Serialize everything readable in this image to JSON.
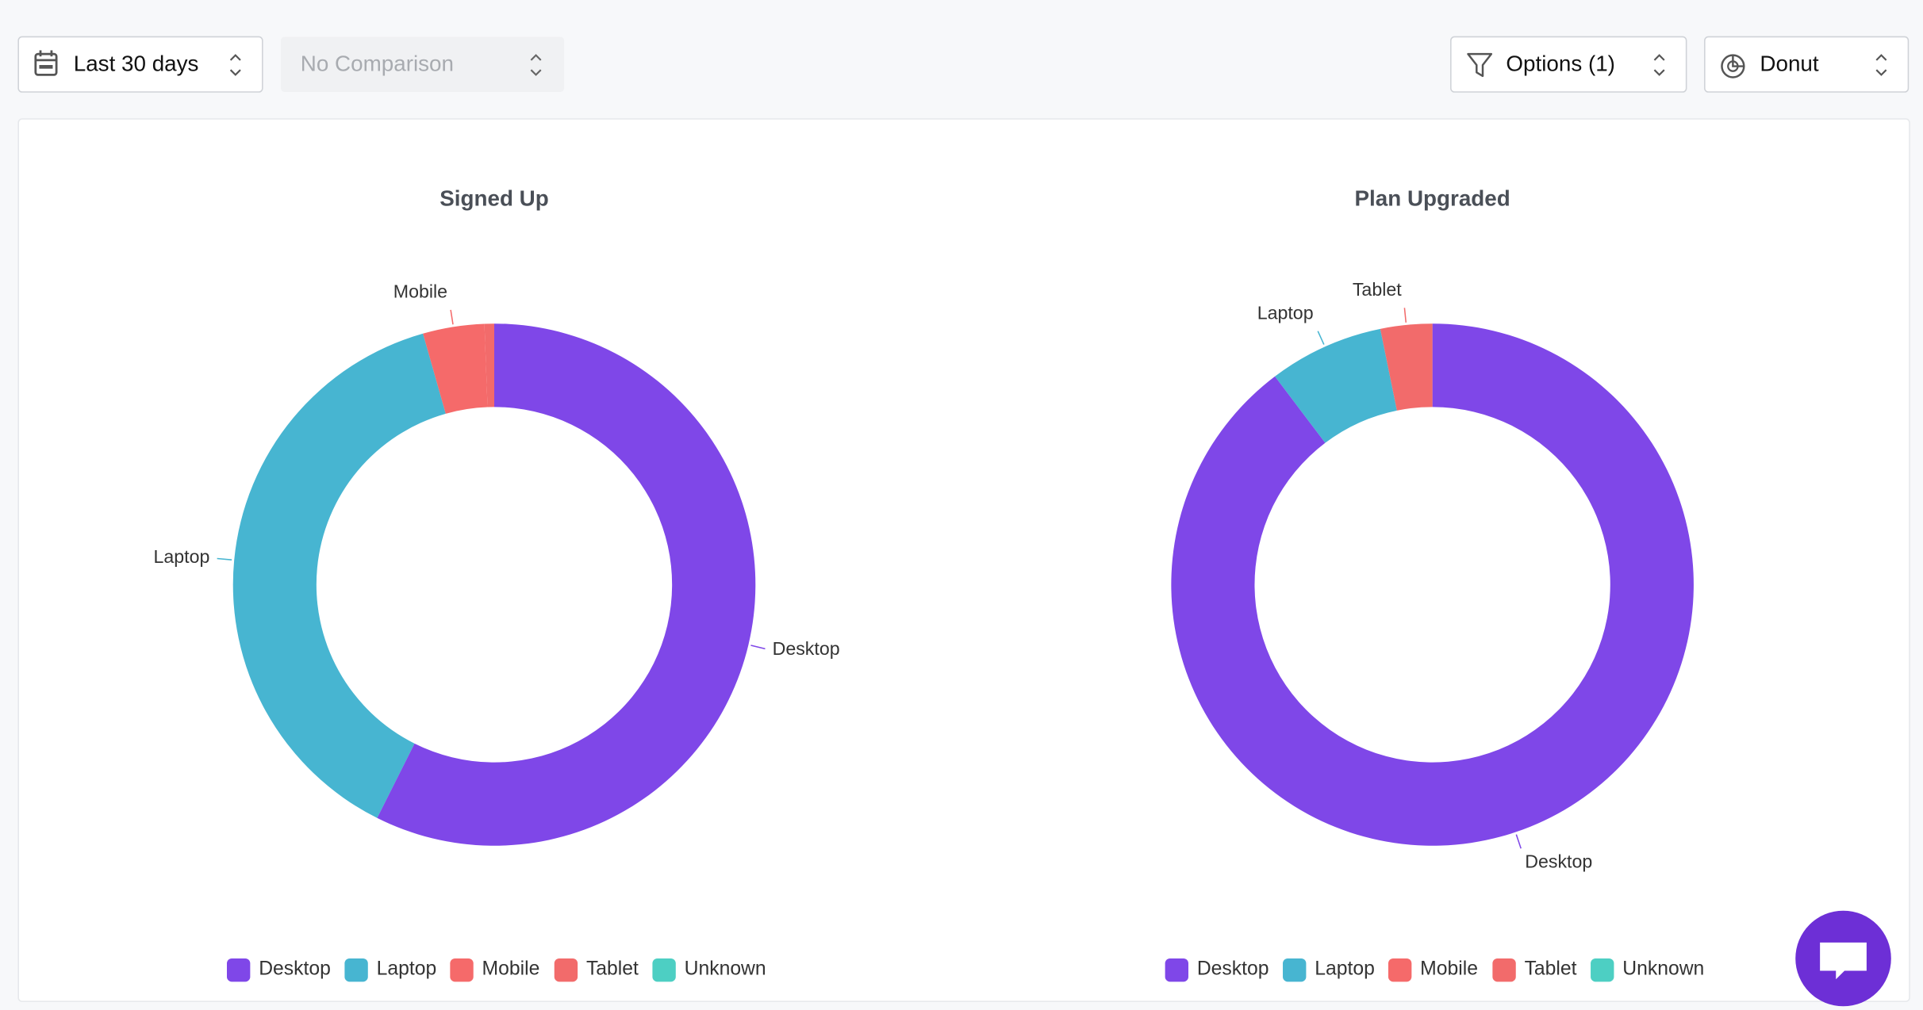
{
  "toolbar": {
    "date_range": "Last 30 days",
    "comparison": "No Comparison",
    "options": "Options (1)",
    "chart_type": "Donut"
  },
  "chart_data": [
    {
      "type": "donut",
      "title": "Signed Up",
      "categories": [
        "Desktop",
        "Laptop",
        "Mobile",
        "Tablet",
        "Unknown"
      ],
      "values": [
        57.4,
        38.2,
        3.8,
        0.6,
        0
      ],
      "colors": [
        "#7f47e8",
        "#47b5d1",
        "#f56a6a",
        "#f26b6b",
        "#4dcfc3"
      ]
    },
    {
      "type": "donut",
      "title": "Plan Upgraded",
      "categories": [
        "Desktop",
        "Laptop",
        "Mobile",
        "Tablet",
        "Unknown"
      ],
      "values": [
        89.7,
        7.1,
        0,
        3.2,
        0
      ],
      "colors": [
        "#7f47e8",
        "#47b5d1",
        "#f56a6a",
        "#f26b6b",
        "#4dcfc3"
      ]
    }
  ]
}
